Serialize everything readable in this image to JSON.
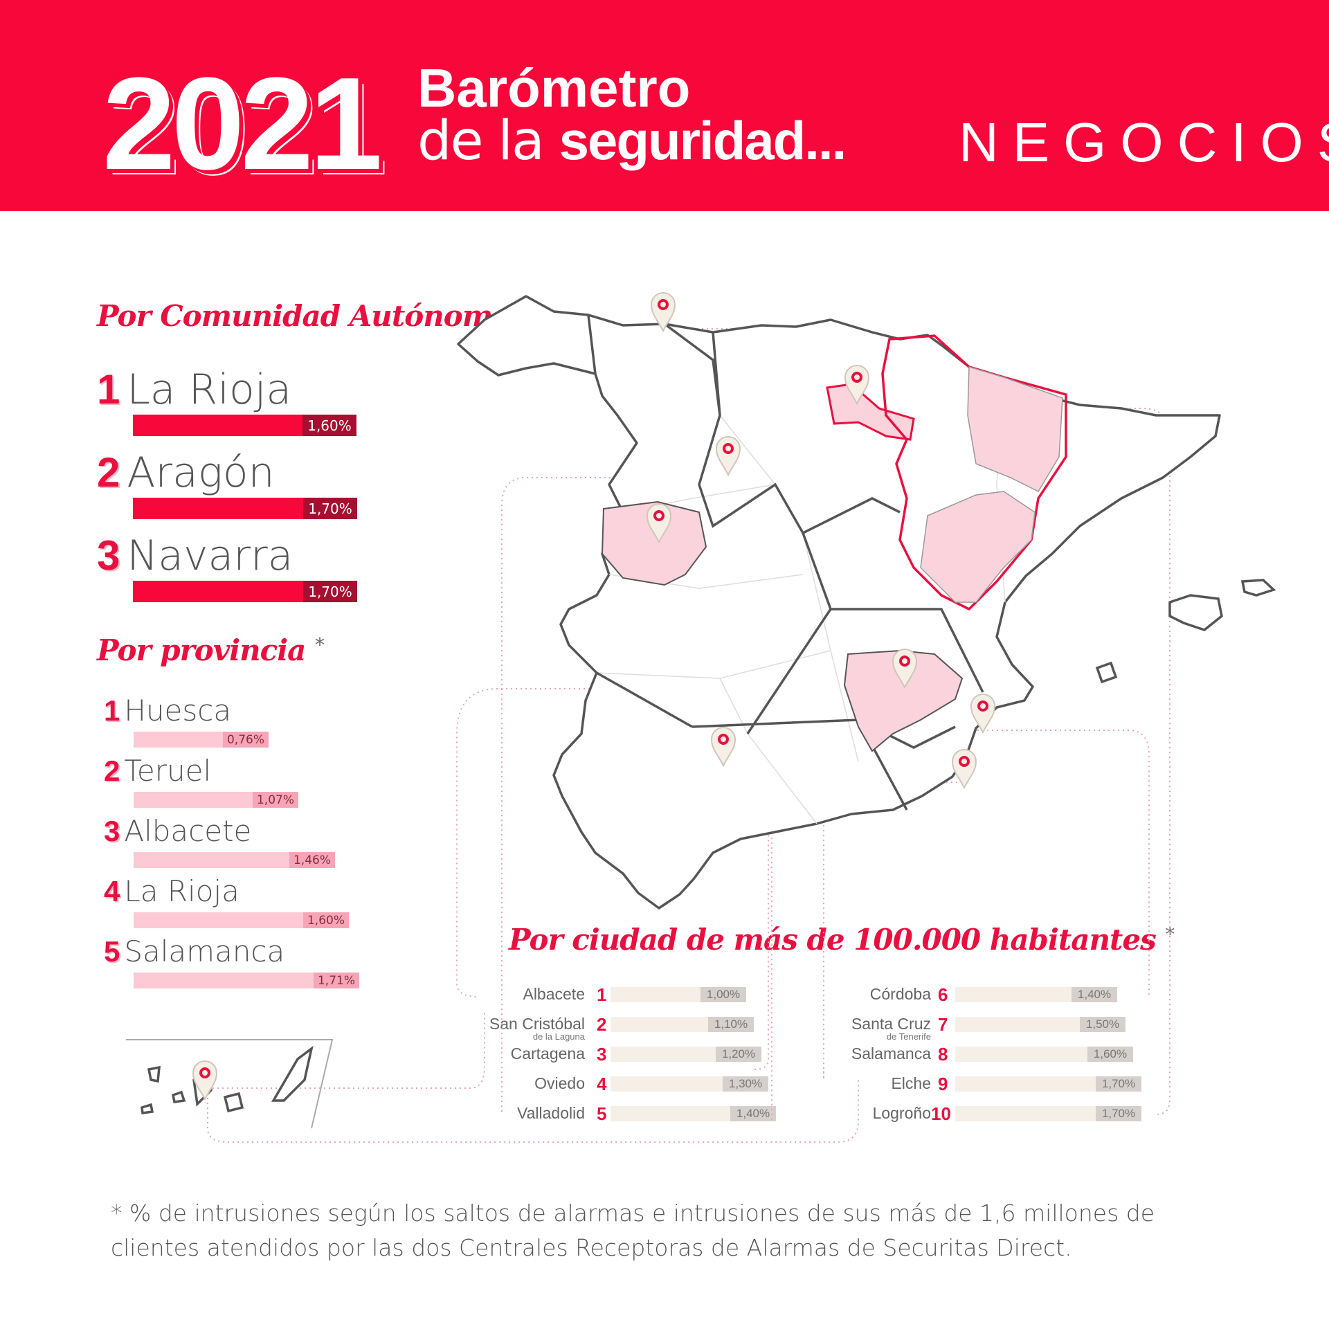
{
  "header": {
    "year": "2021",
    "title_line1": "Barómetro",
    "title_line2_light": "de la ",
    "title_line2_bold": "seguridad...",
    "category": "NEGOCIOS"
  },
  "colors": {
    "brand_red": "#f7073a",
    "dark_red": "#a50f30",
    "light_pink": "#fcc9d4",
    "beige": "#f5efe8"
  },
  "sections": {
    "comunidad_title": "Por Comunidad Autónoma",
    "provincia_title": "Por provincia",
    "ciudad_title": "Por ciudad de más de 100.000 habitantes",
    "asterisk": "*"
  },
  "chart_data": [
    {
      "type": "bar",
      "title": "Por Comunidad Autónoma",
      "items": [
        {
          "rank": "1",
          "name": "La Rioja",
          "value": 1.6,
          "label": "1,60%"
        },
        {
          "rank": "2",
          "name": "Aragón",
          "value": 1.7,
          "label": "1,70%"
        },
        {
          "rank": "3",
          "name": "Navarra",
          "value": 1.7,
          "label": "1,70%"
        }
      ]
    },
    {
      "type": "bar",
      "title": "Por provincia",
      "items": [
        {
          "rank": "1",
          "name": "Huesca",
          "value": 0.76,
          "label": "0,76%"
        },
        {
          "rank": "2",
          "name": "Teruel",
          "value": 1.07,
          "label": "1,07%"
        },
        {
          "rank": "3",
          "name": "Albacete",
          "value": 1.46,
          "label": "1,46%"
        },
        {
          "rank": "4",
          "name": "La Rioja",
          "value": 1.6,
          "label": "1,60%"
        },
        {
          "rank": "5",
          "name": "Salamanca",
          "value": 1.71,
          "label": "1,71%"
        }
      ]
    },
    {
      "type": "bar",
      "title": "Por ciudad de más de 100.000 habitantes",
      "items": [
        {
          "rank": "1",
          "name": "Albacete",
          "sub": "",
          "value": 1.0,
          "label": "1,00%"
        },
        {
          "rank": "2",
          "name": "San Cristóbal",
          "sub": "de la Laguna",
          "value": 1.1,
          "label": "1,10%"
        },
        {
          "rank": "3",
          "name": "Cartagena",
          "sub": "",
          "value": 1.2,
          "label": "1,20%"
        },
        {
          "rank": "4",
          "name": "Oviedo",
          "sub": "",
          "value": 1.3,
          "label": "1,30%"
        },
        {
          "rank": "5",
          "name": "Valladolid",
          "sub": "",
          "value": 1.4,
          "label": "1,40%"
        },
        {
          "rank": "6",
          "name": "Córdoba",
          "sub": "",
          "value": 1.4,
          "label": "1,40%"
        },
        {
          "rank": "7",
          "name": "Santa Cruz",
          "sub": "de Tenerife",
          "value": 1.5,
          "label": "1,50%"
        },
        {
          "rank": "8",
          "name": "Salamanca",
          "sub": "",
          "value": 1.6,
          "label": "1,60%"
        },
        {
          "rank": "9",
          "name": "Elche",
          "sub": "",
          "value": 1.7,
          "label": "1,70%"
        },
        {
          "rank": "10",
          "name": "Logroño",
          "sub": "",
          "value": 1.7,
          "label": "1,70%"
        }
      ]
    }
  ],
  "footnote": "* % de intrusiones según los saltos de alarmas e intrusiones de sus más de 1,6 millones de clientes atendidos por las dos Centrales Receptoras de Alarmas de Securitas Direct."
}
